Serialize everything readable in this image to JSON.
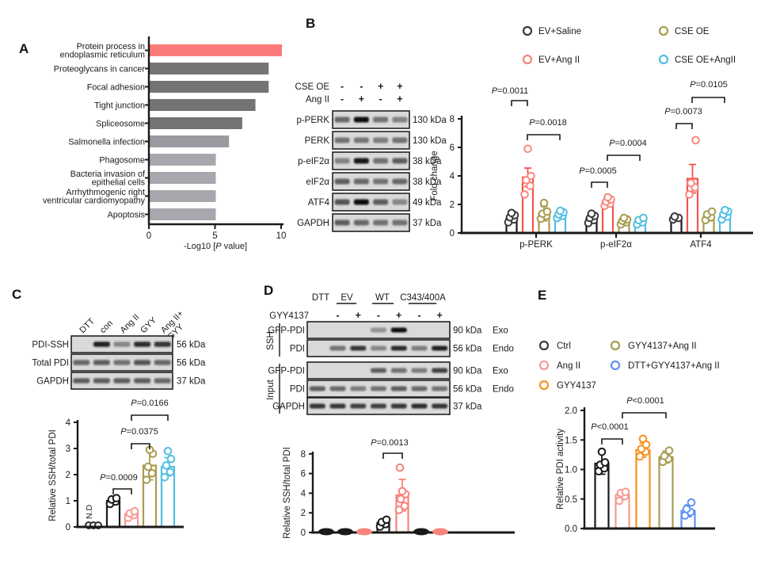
{
  "figure": {
    "panel_labels": {
      "a": "A",
      "b": "B",
      "c": "C",
      "d": "D",
      "e": "E"
    }
  },
  "colors": {
    "highlight_pink": "#fb7b7b",
    "bar_dark_gray": "#747474",
    "bar_mid_gray": "#9a9aa0",
    "bar_light_gray": "#a7a7ad",
    "black": "#1a1a1a",
    "red": "#f2544b",
    "pink": "#f8837b",
    "salmon": "#f79a93",
    "olive": "#a99c4f",
    "cyan": "#52bfe2",
    "orange": "#f6921e",
    "cornflower": "#5f93f2"
  },
  "chart_data": [
    {
      "panel": "A",
      "type": "bar",
      "orientation": "horizontal",
      "xlabel": "-Log10 [P value]",
      "xticks": [
        "0",
        "5",
        "10"
      ],
      "xlim": [
        0,
        10
      ],
      "categories": [
        "Protein process in\nendoplasmic reticulum",
        "Proteoglycans in cancer",
        "Focal adhesion",
        "Tight junction",
        "Spliceosome",
        "Salmonella infection",
        "Phagosome",
        "Bacteria invasion of\nepithelial cells",
        "Arrhythmogenic right\nventricular cardiomyopathy",
        "Apoptosis"
      ],
      "values": [
        10,
        9,
        9,
        8,
        7,
        6,
        5,
        5,
        5,
        5
      ],
      "bar_colors": [
        "#fb7b7b",
        "#747474",
        "#747474",
        "#747474",
        "#747474",
        "#9a9aa0",
        "#a7a7ad",
        "#a7a7ad",
        "#a7a7ad",
        "#a7a7ad"
      ]
    },
    {
      "panel": "B",
      "type": "grouped_bar",
      "ylabel": "Fold change",
      "ylim": [
        0,
        8
      ],
      "yticks": [
        "0",
        "2",
        "4",
        "6",
        "8"
      ],
      "categories": [
        "p-PERK",
        "p-eIF2α",
        "ATF4"
      ],
      "legend": [
        {
          "label": "EV+Saline",
          "color": "#3a3a3a"
        },
        {
          "label": "EV+Ang II",
          "color": "#f8837b"
        },
        {
          "label": "CSE OE",
          "color": "#a99c4f"
        },
        {
          "label": "CSE OE+AngII",
          "color": "#52bfe2"
        }
      ],
      "series": [
        {
          "name": "EV+Saline",
          "color": "#1a1a1a",
          "dot_color": "#3a3a3a",
          "values": [
            1.0,
            1.0,
            1.05
          ],
          "errors": [
            0.25,
            0.2,
            0.1
          ],
          "dots": [
            [
              0.75,
              0.95,
              1.1,
              1.25,
              1.4
            ],
            [
              0.7,
              0.9,
              1.05,
              1.2,
              1.35
            ],
            [
              0.95,
              1.05,
              1.15
            ]
          ]
        },
        {
          "name": "EV+Ang II",
          "color": "#f2544b",
          "dot_color": "#f9887f",
          "values": [
            3.9,
            2.2,
            3.8
          ],
          "errors": [
            0.65,
            0.3,
            1.0
          ],
          "dots": [
            [
              2.7,
              3.3,
              3.7,
              4.0,
              5.9
            ],
            [
              1.9,
              2.05,
              2.2,
              2.35,
              2.5
            ],
            [
              2.7,
              3.2,
              3.5,
              6.5
            ]
          ]
        },
        {
          "name": "CSE OE",
          "color": "#a99c4f",
          "dot_color": "#a99c4f",
          "values": [
            1.35,
            0.85,
            1.15
          ],
          "errors": [
            0.5,
            0.15,
            0.3
          ],
          "dots": [
            [
              1.0,
              1.2,
              1.35,
              1.5,
              2.1
            ],
            [
              0.6,
              0.75,
              0.85,
              0.95,
              1.05
            ],
            [
              0.9,
              1.1,
              1.3,
              1.5
            ]
          ]
        },
        {
          "name": "CSE OE+AngII",
          "color": "#52bfe2",
          "dot_color": "#52bfe2",
          "values": [
            1.3,
            0.85,
            1.2
          ],
          "errors": [
            0.2,
            0.15,
            0.25
          ],
          "dots": [
            [
              1.05,
              1.2,
              1.3,
              1.45,
              1.55
            ],
            [
              0.6,
              0.75,
              0.9,
              1.05
            ],
            [
              0.95,
              1.15,
              1.3,
              1.5,
              1.6
            ]
          ]
        }
      ],
      "p_values": [
        "P=0.0011",
        "P=0.0018",
        "P=0.0005",
        "P=0.0004",
        "P=0.0073",
        "P=0.0105"
      ]
    },
    {
      "panel": "C",
      "type": "bar",
      "ylabel": "Relative SSH/total PDI",
      "ylim": [
        0,
        4
      ],
      "yticks": [
        "0",
        "1",
        "2",
        "3",
        "4"
      ],
      "categories": [
        "DTT",
        "con",
        "Ang II",
        "GYY",
        "Ang II+GYY"
      ],
      "values": [
        0,
        1.0,
        0.5,
        2.35,
        2.3
      ],
      "errors": [
        0,
        0.12,
        0.1,
        0.55,
        0.35
      ],
      "dots": [
        [],
        [
          0.88,
          0.97,
          1.05,
          1.1
        ],
        [
          0.35,
          0.45,
          0.52,
          0.6
        ],
        [
          1.8,
          2.05,
          2.3,
          2.8,
          2.95
        ],
        [
          1.9,
          2.1,
          2.35,
          2.6,
          2.9
        ]
      ],
      "bar_colors": [
        "#1a1a1a",
        "#1a1a1a",
        "#f79a93",
        "#a99c4f",
        "#52bfe2"
      ],
      "nd_label": "N.D",
      "p_values": [
        "P=0.0009",
        "P=0.0375",
        "P=0.0166"
      ]
    },
    {
      "panel": "D",
      "type": "bar",
      "ylabel": "Relative SSH/total PDI",
      "ylim": [
        0,
        8
      ],
      "yticks": [
        "0",
        "2",
        "4",
        "6",
        "8"
      ],
      "categories": [
        "DTT",
        "EV-",
        "EV+",
        "WT-",
        "WT+",
        "C343/400A-",
        "C343/400A+"
      ],
      "values": [
        0,
        0,
        0,
        1.0,
        3.8,
        0,
        0
      ],
      "errors": [
        0,
        0,
        0,
        0.3,
        1.6,
        0,
        0
      ],
      "dots": [
        [],
        [],
        [],
        [
          0.6,
          0.85,
          1.05,
          1.3
        ],
        [
          2.3,
          2.7,
          3.4,
          3.9,
          4.2,
          6.6
        ],
        [],
        []
      ],
      "bar_colors": [
        "#1a1a1a",
        "#1a1a1a",
        "#f8837b",
        "#1a1a1a",
        "#f8837b",
        "#1a1a1a",
        "#f8837b"
      ],
      "p_values": [
        "P=0.0013"
      ]
    },
    {
      "panel": "E",
      "type": "bar",
      "ylabel": "Relative PDI activity",
      "ylim": [
        0,
        2
      ],
      "yticks": [
        "0.0",
        "0.5",
        "1.0",
        "1.5",
        "2.0"
      ],
      "categories": [
        "Ctrl",
        "Ang II",
        "GYY4137",
        "GYY4137+Ang II",
        "DTT+GYY4137+Ang II"
      ],
      "legend": [
        {
          "label": "Ctrl",
          "color": "#3a3a3a"
        },
        {
          "label": "Ang II",
          "color": "#f79a93"
        },
        {
          "label": "GYY4137",
          "color": "#f6921e"
        },
        {
          "label": "GYY4137+Ang II",
          "color": "#a99c4f"
        },
        {
          "label": "DTT+GYY4137+Ang II",
          "color": "#5f93f2"
        }
      ],
      "values": [
        1.1,
        0.57,
        1.33,
        1.21,
        0.3
      ],
      "errors": [
        0.18,
        0.08,
        0.12,
        0.1,
        0.1
      ],
      "dots": [
        [
          0.97,
          1.02,
          1.08,
          1.12,
          1.3
        ],
        [
          0.47,
          0.55,
          0.6,
          0.62
        ],
        [
          1.22,
          1.3,
          1.35,
          1.42,
          1.52
        ],
        [
          1.13,
          1.18,
          1.23,
          1.32
        ],
        [
          0.22,
          0.28,
          0.33,
          0.44
        ]
      ],
      "bar_colors": [
        "#1a1a1a",
        "#f79a93",
        "#f6921e",
        "#a99c4f",
        "#5f93f2"
      ],
      "p_values": [
        "P<0.0001",
        "P<0.0001"
      ]
    }
  ],
  "blots": {
    "b": {
      "header_rows": [
        {
          "label": "CSE OE",
          "signs": [
            "-",
            "-",
            "+",
            "+"
          ]
        },
        {
          "label": "Ang II",
          "signs": [
            "-",
            "+",
            "-",
            "+"
          ]
        }
      ],
      "rows": [
        {
          "label": "p-PERK",
          "kda": "130 kDa",
          "bands": [
            0.55,
            1.0,
            0.5,
            0.42
          ]
        },
        {
          "label": "PERK",
          "kda": "130 kDa",
          "bands": [
            0.5,
            0.48,
            0.45,
            0.5
          ]
        },
        {
          "label": "p-eIF2α",
          "kda": "38 kDa",
          "bands": [
            0.42,
            0.95,
            0.5,
            0.6
          ]
        },
        {
          "label": "eIF2α",
          "kda": "38 kDa",
          "bands": [
            0.6,
            0.55,
            0.5,
            0.55
          ]
        },
        {
          "label": "ATF4",
          "kda": "49 kDa",
          "bands": [
            0.65,
            1.0,
            0.6,
            0.4
          ]
        },
        {
          "label": "GAPDH",
          "kda": "37 kDa",
          "bands": [
            0.6,
            0.55,
            0.5,
            0.5
          ]
        }
      ]
    },
    "c": {
      "lane_labels": [
        [
          "DTT"
        ],
        [
          "con"
        ],
        [
          "Ang II"
        ],
        [
          "GYY"
        ],
        [
          "Ang II+",
          "GYY"
        ]
      ],
      "rows": [
        {
          "label": "PDI-SSH",
          "kda": "56 kDa",
          "bands": [
            0,
            0.9,
            0.4,
            0.85,
            0.8
          ]
        },
        {
          "label": "Total PDI",
          "kda": "56 kDa",
          "bands": [
            0.55,
            0.6,
            0.5,
            0.65,
            0.55
          ]
        },
        {
          "label": "GAPDH",
          "kda": "37 kDa",
          "bands": [
            0.6,
            0.6,
            0.6,
            0.6,
            0.55
          ]
        }
      ]
    },
    "d": {
      "group_labels": [
        "DTT",
        "EV",
        "WT",
        "C343/400A"
      ],
      "treatment_label": "GYY4137",
      "signs": [
        "-",
        "+",
        "-",
        "+",
        "-",
        "+"
      ],
      "section_labels": [
        "SSH",
        "Input"
      ],
      "rows": [
        {
          "section": 0,
          "label": "GFP-PDI",
          "kda": "90 kDa",
          "tag": "Exo",
          "bands": [
            0,
            0,
            0,
            0.35,
            1.0,
            0,
            0
          ]
        },
        {
          "section": 0,
          "label": "PDI",
          "kda": "56 kDa",
          "tag": "Endo",
          "bands": [
            0,
            0.5,
            0.8,
            0.4,
            0.85,
            0.45,
            0.9
          ]
        },
        {
          "section": 1,
          "label": "GFP-PDI",
          "kda": "90 kDa",
          "tag": "Exo",
          "bands": [
            0,
            0,
            0,
            0.6,
            0.5,
            0.45,
            0.75
          ]
        },
        {
          "section": 1,
          "label": "PDI",
          "kda": "56 kDa",
          "tag": "Endo",
          "bands": [
            0.6,
            0.55,
            0.45,
            0.5,
            0.6,
            0.55,
            0.5
          ]
        },
        {
          "section": 1,
          "label": "GAPDH",
          "kda": "37 kDa",
          "tag": "",
          "bands": [
            0.8,
            0.8,
            0.75,
            0.75,
            0.8,
            0.85,
            0.8
          ]
        }
      ]
    }
  }
}
